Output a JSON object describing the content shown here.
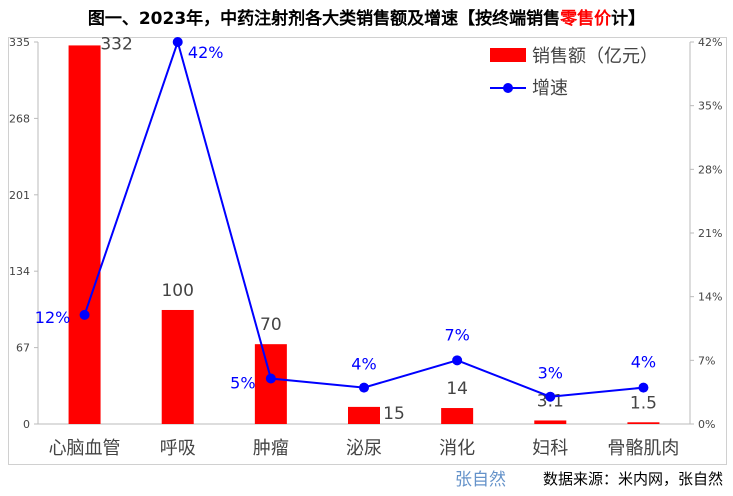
{
  "title": {
    "main": "图一、2023年，中药注射剂各大类销售额及增速【按终端销售",
    "highlight": "零售价",
    "end": "计】"
  },
  "colors": {
    "bar": "#ff0000",
    "line": "#0000ff"
  },
  "chart_data": {
    "type": "bar+line",
    "categories": [
      "心脑血管",
      "呼吸",
      "肿瘤",
      "泌尿",
      "消化",
      "妇科",
      "骨骼肌肉"
    ],
    "series": [
      {
        "name": "销售额（亿元）",
        "type": "bar",
        "axis": "left",
        "values": [
          332,
          100,
          70,
          15,
          14,
          3.1,
          1.5
        ],
        "labels": [
          "332",
          "100",
          "70",
          "15",
          "14",
          "3.1",
          "1.5"
        ]
      },
      {
        "name": "增速",
        "type": "line",
        "axis": "right",
        "values": [
          12,
          42,
          5,
          4,
          7,
          3,
          4
        ],
        "labels": [
          "12%",
          "42%",
          "5%",
          "4%",
          "7%",
          "3%",
          "4%"
        ]
      }
    ],
    "left_axis": {
      "ticks": [
        "0",
        "67",
        "134",
        "201",
        "268",
        "335"
      ],
      "range": [
        0,
        335
      ]
    },
    "right_axis": {
      "ticks": [
        "0%",
        "7%",
        "14%",
        "21%",
        "28%",
        "35%",
        "42%"
      ],
      "range": [
        0,
        42
      ]
    },
    "legend": {
      "placement": "top-right",
      "items": [
        "销售额（亿元）",
        "增速"
      ]
    }
  },
  "source": "数据来源：米内网，张自然",
  "watermark": "张自然"
}
